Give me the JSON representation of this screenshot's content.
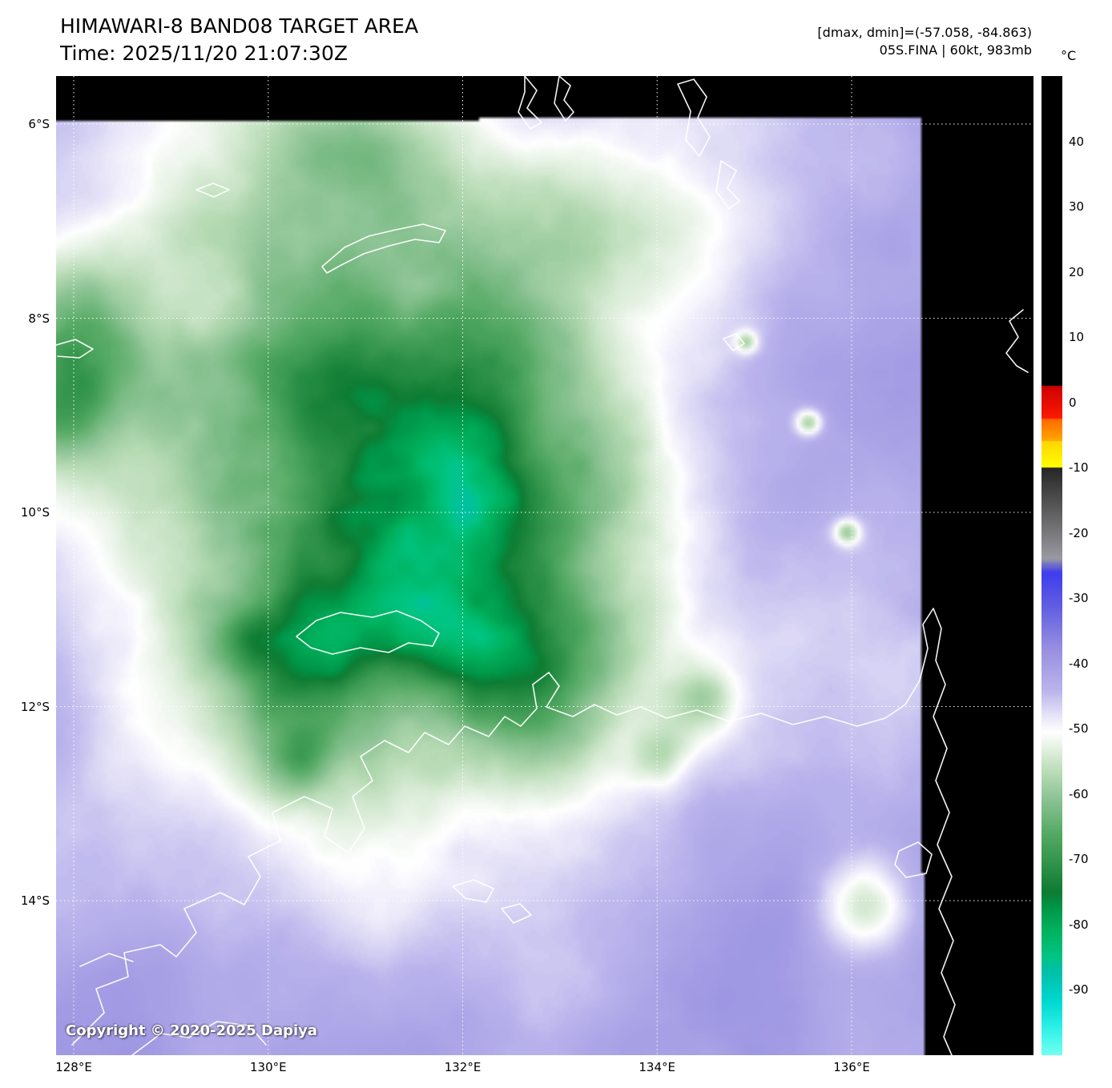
{
  "header": {
    "title": "HIMAWARI-8 BAND08 TARGET AREA",
    "time_line": "Time: 2025/11/20 21:07:30Z",
    "dminmax_line": "[dmax, dmin]=(-57.058, -84.863)",
    "storm_line": "05S.FINA | 60kt, 983mb"
  },
  "colorbar": {
    "unit": "°C",
    "ticks": [
      "40",
      "30",
      "20",
      "10",
      "0",
      "-10",
      "-20",
      "-30",
      "-40",
      "-50",
      "-60",
      "-70",
      "-80",
      "-90"
    ],
    "palette": [
      [
        50,
        "#000000"
      ],
      [
        2.5,
        "#000000"
      ],
      [
        2.5,
        "#cc0000"
      ],
      [
        -2.5,
        "#ff1a00"
      ],
      [
        -2.5,
        "#ff6600"
      ],
      [
        -6,
        "#ffaa00"
      ],
      [
        -6,
        "#ffd700"
      ],
      [
        -10,
        "#ffff00"
      ],
      [
        -10,
        "#262626"
      ],
      [
        -17,
        "#606060"
      ],
      [
        -24,
        "#9a9aa2"
      ],
      [
        -26,
        "#3d3dee"
      ],
      [
        -31,
        "#5f5ce2"
      ],
      [
        -38,
        "#9991e0"
      ],
      [
        -44,
        "#b9b3ec"
      ],
      [
        -48,
        "#e6e3f8"
      ],
      [
        -50.5,
        "#ffffff"
      ],
      [
        -53,
        "#e4f1e2"
      ],
      [
        -57,
        "#b5dab3"
      ],
      [
        -61,
        "#8ac292"
      ],
      [
        -66,
        "#55aa64"
      ],
      [
        -71,
        "#2e9148"
      ],
      [
        -75,
        "#0e7c33"
      ],
      [
        -77,
        "#009246"
      ],
      [
        -81,
        "#00b25e"
      ],
      [
        -85,
        "#00c583"
      ],
      [
        -87,
        "#00bfa6"
      ],
      [
        -92,
        "#00d9d2"
      ],
      [
        -96,
        "#30f2e8"
      ],
      [
        -100,
        "#70fff2"
      ]
    ]
  },
  "map": {
    "lat_ticks": [
      "6°S",
      "8°S",
      "10°S",
      "12°S",
      "14°S"
    ],
    "lon_ticks": [
      "128°E",
      "130°E",
      "132°E",
      "134°E",
      "136°E"
    ],
    "copyright": "Copyright © 2020-2025 Dapiya",
    "background_color": "#000000",
    "gridline_color": "#ffffff",
    "coastline_color": "#ffffff"
  }
}
